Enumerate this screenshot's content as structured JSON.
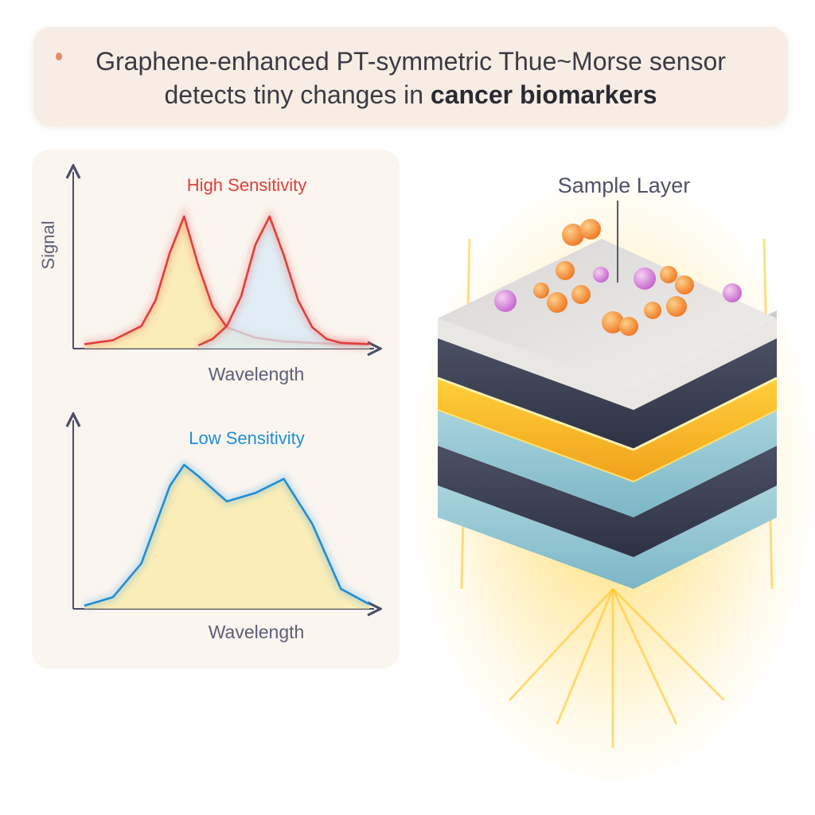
{
  "title": {
    "line1": "Graphene-enhanced PT-symmetric Thue~Morse sensor",
    "line2_start": "detects tiny changes in ",
    "line2_bold": "cancer biomarkers"
  },
  "colors": {
    "high": "#e0403a",
    "low": "#1f8fd6",
    "fill": "#fbe9a6",
    "axis": "#4a4e6a",
    "glow": "#ffc21a"
  },
  "chart_data": [
    {
      "type": "line",
      "title": "High Sensitivity",
      "xlabel": "Wavelength",
      "ylabel": "Signal",
      "series": [
        {
          "name": "",
          "x": [
            0,
            0.1,
            0.2,
            0.25,
            0.3,
            0.35,
            0.4,
            0.45,
            0.5,
            0.6,
            0.7,
            0.8,
            0.9,
            1.0
          ],
          "y": [
            0.01,
            0.04,
            0.15,
            0.35,
            0.72,
            1.0,
            0.62,
            0.3,
            0.14,
            0.06,
            0.03,
            0.02,
            0.01,
            0.01
          ]
        },
        {
          "name": "",
          "x": [
            0.4,
            0.45,
            0.5,
            0.55,
            0.6,
            0.65,
            0.7,
            0.75,
            0.8,
            0.85,
            0.9,
            1.0
          ],
          "y": [
            0.0,
            0.05,
            0.15,
            0.38,
            0.78,
            1.0,
            0.7,
            0.35,
            0.14,
            0.05,
            0.02,
            0.01
          ]
        }
      ]
    },
    {
      "type": "area",
      "title": "Low Sensitivity",
      "xlabel": "Wavelength",
      "ylabel": "",
      "series": [
        {
          "name": "",
          "x": [
            0,
            0.1,
            0.2,
            0.3,
            0.35,
            0.4,
            0.5,
            0.6,
            0.7,
            0.8,
            0.9,
            1.0
          ],
          "y": [
            0.0,
            0.06,
            0.3,
            0.85,
            1.0,
            0.92,
            0.74,
            0.8,
            0.9,
            0.58,
            0.12,
            0.01
          ]
        }
      ]
    }
  ],
  "scene": {
    "sample_label": "Sample Layer",
    "layers": [
      "sample",
      "graphene",
      "gold",
      "dielectric",
      "graphene",
      "dielectric"
    ]
  }
}
